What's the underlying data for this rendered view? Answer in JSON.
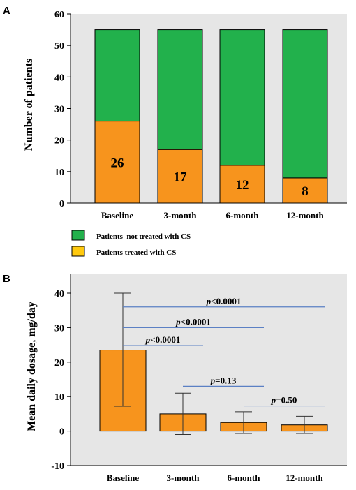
{
  "colors": {
    "plot_bg": "#e6e6e6",
    "green": "#22b14c",
    "orange": "#f7941d",
    "legend_yellow": "#ffc90e",
    "bracket": "#5b80c4",
    "text": "#000000"
  },
  "panel_a": {
    "label": "A"
  },
  "panel_b": {
    "label": "B"
  },
  "chart_data": [
    {
      "type": "bar",
      "stacked": true,
      "title": "",
      "ylabel": "Number of patients",
      "xlabel": "",
      "ylim": [
        0,
        60
      ],
      "yticks": [
        0,
        10,
        20,
        30,
        40,
        50,
        60
      ],
      "categories": [
        "Baseline",
        "3-month",
        "6-month",
        "12-month"
      ],
      "series": [
        {
          "name": "Patients treated with CS",
          "values": [
            26,
            17,
            12,
            8
          ],
          "color": "#f7941d",
          "legend_color": "#ffc90e"
        },
        {
          "name": "Patients  not treated with CS",
          "values": [
            29,
            38,
            43,
            47
          ],
          "color": "#22b14c",
          "legend_color": "#22b14c"
        }
      ],
      "data_labels": [
        "26",
        "17",
        "12",
        "8"
      ],
      "legend_position": "bottom-left",
      "grid": false
    },
    {
      "type": "bar",
      "title": "",
      "ylabel": "Mean daily dosage, mg/day",
      "xlabel": "",
      "ylim": [
        -10,
        40
      ],
      "yticks": [
        -10,
        0,
        10,
        20,
        30,
        40
      ],
      "categories": [
        "Baseline",
        "3-month",
        "6-month",
        "12-month"
      ],
      "values": [
        23.5,
        5.0,
        2.5,
        1.8
      ],
      "error_low": [
        7.2,
        -1.0,
        -0.7,
        -0.7
      ],
      "error_high": [
        40.0,
        11.0,
        5.6,
        4.3
      ],
      "annotations": [
        {
          "text": "p<0.0001",
          "from": "Baseline",
          "to": "12-month",
          "y": 36
        },
        {
          "text": "p<0.0001",
          "from": "Baseline",
          "to": "6-month",
          "y": 30
        },
        {
          "text": "p<0.0001",
          "from": "Baseline",
          "to": "3-month",
          "y": 24.8
        },
        {
          "text": "p=0.13",
          "from": "3-month",
          "to": "6-month",
          "y": 13
        },
        {
          "text": "p=0.50",
          "from": "6-month",
          "to": "12-month",
          "y": 7.3
        }
      ],
      "grid": false
    }
  ]
}
